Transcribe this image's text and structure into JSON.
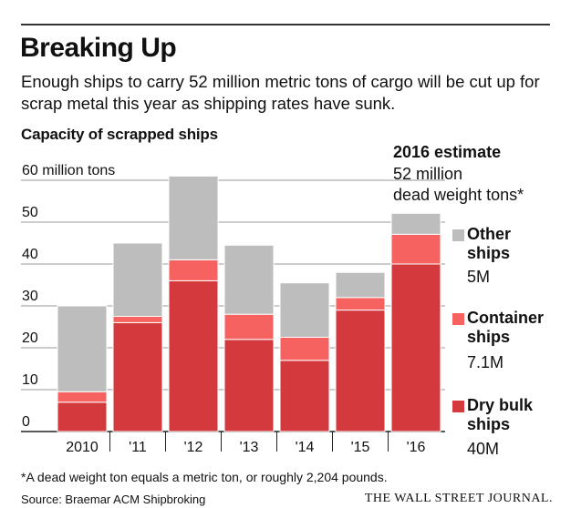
{
  "title": "Breaking Up",
  "subtitle": "Enough ships to carry 52 million metric tons of cargo will be cut up for scrap metal this year as shipping rates have sunk.",
  "chart_label": "Capacity of scrapped ships",
  "estimate": {
    "title": "2016 estimate",
    "line1": "52 million",
    "line2": "dead weight tons*"
  },
  "legend": {
    "other": {
      "line1": "Other",
      "line2": "ships",
      "value": "5M"
    },
    "container": {
      "line1": "Container",
      "line2": "ships",
      "value": "7.1M"
    },
    "drybulk": {
      "line1": "Dry bulk",
      "line2": "ships",
      "value": "40M"
    }
  },
  "footnote": "*A dead weight ton equals a metric ton, or roughly 2,204 pounds.",
  "source": "Source: Braemar ACM Shipbroking",
  "masthead": "THE WALL STREET JOURNAL.",
  "colors": {
    "drybulk": "#d3393d",
    "container": "#f5625f",
    "other": "#bdbdbd",
    "grid": "#999999"
  },
  "chart_data": {
    "type": "bar",
    "stacked": true,
    "categories": [
      "2010",
      "'11",
      "'12",
      "'13",
      "'14",
      "'15",
      "'16"
    ],
    "series": [
      {
        "name": "Dry bulk ships",
        "values": [
          7,
          26,
          36,
          22,
          17,
          29,
          40
        ]
      },
      {
        "name": "Container ships",
        "values": [
          2.5,
          1.5,
          5,
          6,
          5.5,
          3,
          7.1
        ]
      },
      {
        "name": "Other ships",
        "values": [
          20.5,
          17.5,
          20,
          16.5,
          13,
          6,
          5
        ]
      }
    ],
    "ylim": [
      0,
      60
    ],
    "yticks": [
      0,
      10,
      20,
      30,
      40,
      50,
      60
    ],
    "ytick_labels": [
      "0",
      "10",
      "20",
      "30",
      "40",
      "50",
      "60 million tons"
    ],
    "grid": true,
    "legend_position": "right"
  }
}
